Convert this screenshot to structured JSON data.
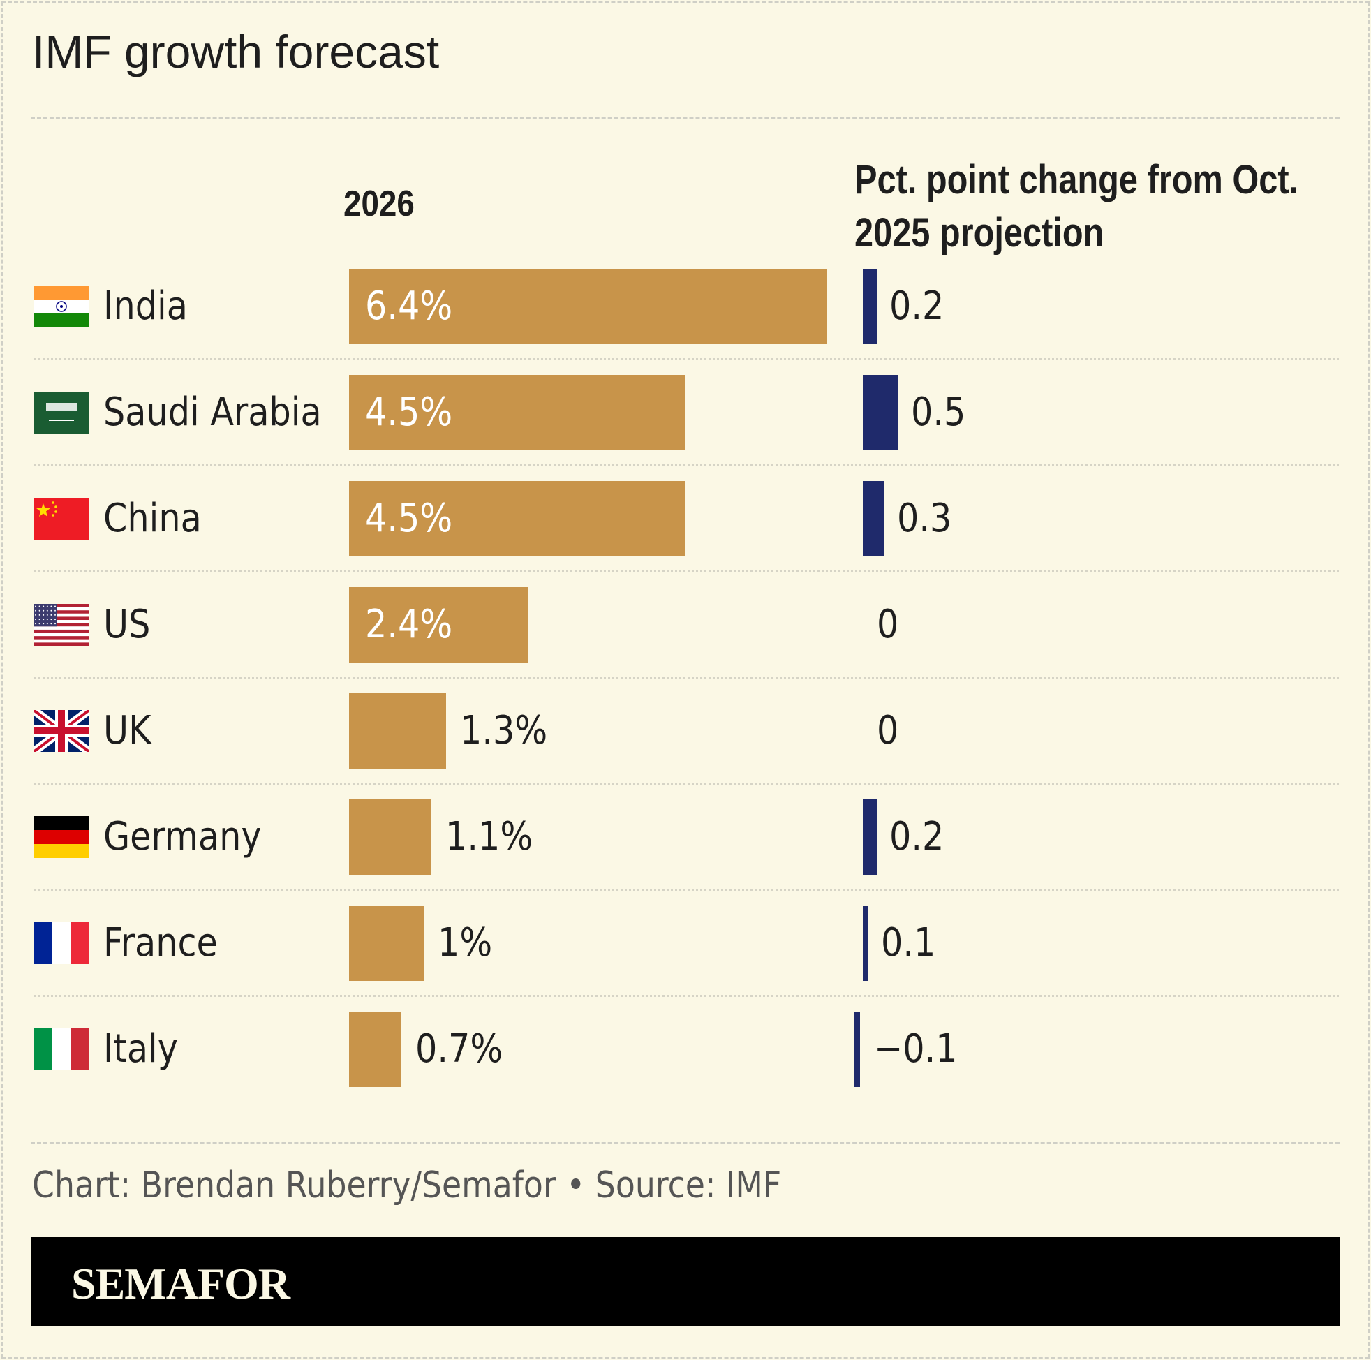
{
  "colors": {
    "bar": "#c8944a",
    "change_bar": "#1f2a6b",
    "background": "#fbf8e5"
  },
  "chart_data": {
    "type": "bar",
    "title": "IMF growth forecast",
    "series": [
      {
        "name": "2026",
        "unit": "%",
        "values": [
          6.4,
          4.5,
          4.5,
          2.4,
          1.3,
          1.1,
          1.0,
          0.7
        ],
        "labels": [
          "6.4%",
          "4.5%",
          "4.5%",
          "2.4%",
          "1.3%",
          "1.1%",
          "1%",
          "0.7%"
        ]
      },
      {
        "name": "Pct. point change from Oct. 2025 projection",
        "values": [
          0.2,
          0.5,
          0.3,
          0,
          0,
          0.2,
          0.1,
          -0.1
        ],
        "labels": [
          "0.2",
          "0.5",
          "0.3",
          "0",
          "0",
          "0.2",
          "0.1",
          "−0.1"
        ]
      }
    ],
    "categories": [
      "India",
      "Saudi Arabia",
      "China",
      "US",
      "UK",
      "Germany",
      "France",
      "Italy"
    ],
    "flags": [
      "in",
      "sa",
      "cn",
      "us",
      "uk",
      "de",
      "fr",
      "it"
    ],
    "header_2026": "2026",
    "header_change_line1": "Pct. point change from Oct.",
    "header_change_line2": "2025 projection"
  },
  "footer": "Chart: Brendan Ruberry/Semafor • Source: IMF",
  "brand": "SEMAFOR"
}
